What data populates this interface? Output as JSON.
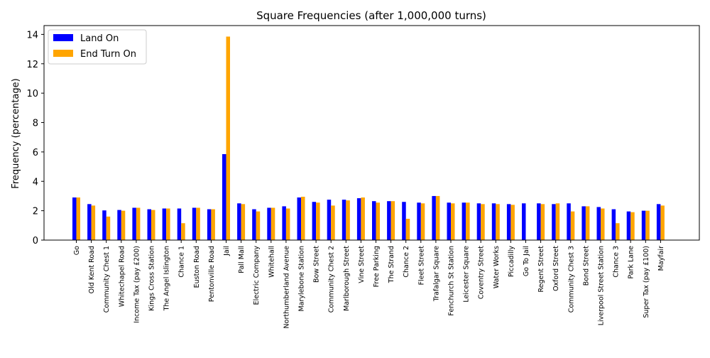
{
  "chart_data": {
    "type": "bar",
    "title": "Square Frequencies (after 1,000,000 turns)",
    "xlabel": "",
    "ylabel": "Frequency (percentage)",
    "ylim": [
      0,
      14.6
    ],
    "yticks": [
      0,
      2,
      4,
      6,
      8,
      10,
      12,
      14
    ],
    "grid": false,
    "legend_position": "top-left",
    "categories": [
      "Go",
      "Old Kent Road",
      "Community Chest 1",
      "Whitechapel Road",
      "Income Tax (pay £200)",
      "Kings Cross Station",
      "The Angel Islington",
      "Chance 1",
      "Euston Road",
      "Pentonville Road",
      "Jail",
      "Pall Mall",
      "Electric Company",
      "Whitehall",
      "Northumberland Avenue",
      "Marylebone Station",
      "Bow Street",
      "Community Chest 2",
      "Marlborough Street",
      "Vine Street",
      "Free Parking",
      "The Strand",
      "Chance 2",
      "Fleet Street",
      "Trafalgar Square",
      "Fenchurch St Station",
      "Leicester Square",
      "Coventry Street",
      "Water Works",
      "Piccadilly",
      "Go To Jail",
      "Regent Street",
      "Oxford Street",
      "Community Chest 3",
      "Bond Street",
      "Liverpool Street Station",
      "Chance 3",
      "Park Lane",
      "Super Tax (pay £100)",
      "Mayfair"
    ],
    "series": [
      {
        "name": "Land On",
        "color": "#0000ff",
        "values": [
          2.9,
          2.45,
          2.02,
          2.05,
          2.2,
          2.1,
          2.15,
          2.15,
          2.2,
          2.1,
          5.85,
          2.5,
          2.1,
          2.2,
          2.3,
          2.9,
          2.6,
          2.75,
          2.75,
          2.85,
          2.65,
          2.65,
          2.6,
          2.55,
          3.0,
          2.55,
          2.55,
          2.5,
          2.5,
          2.45,
          2.5,
          2.5,
          2.45,
          2.5,
          2.3,
          2.25,
          2.1,
          1.95,
          2.0,
          2.45
        ]
      },
      {
        "name": "End Turn On",
        "color": "#ffa500",
        "values": [
          2.9,
          2.35,
          1.6,
          2.0,
          2.2,
          2.05,
          2.15,
          1.15,
          2.2,
          2.1,
          13.85,
          2.45,
          1.95,
          2.2,
          2.15,
          2.95,
          2.55,
          2.35,
          2.7,
          2.9,
          2.55,
          2.65,
          1.45,
          2.5,
          3.0,
          2.5,
          2.55,
          2.45,
          2.45,
          2.4,
          0.0,
          2.45,
          2.5,
          1.95,
          2.3,
          2.15,
          1.15,
          1.9,
          2.0,
          2.35
        ]
      }
    ]
  }
}
